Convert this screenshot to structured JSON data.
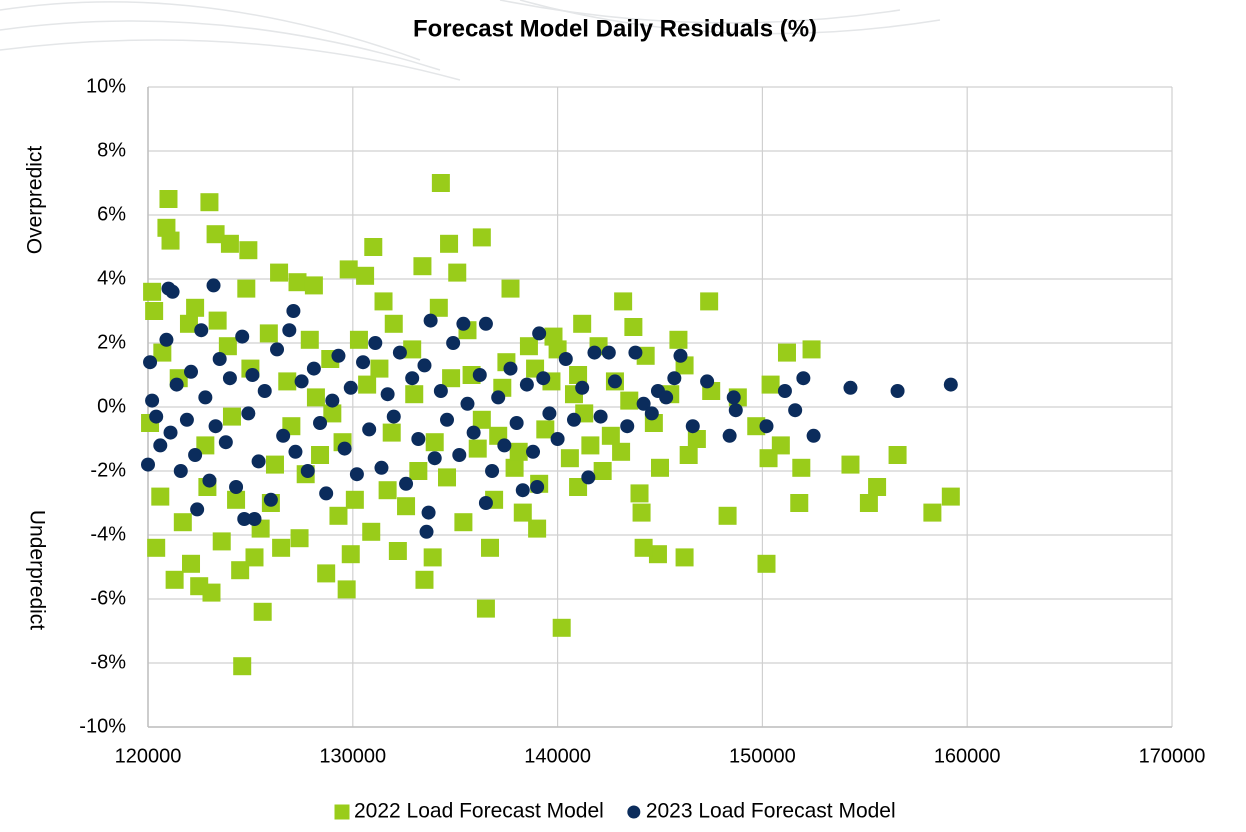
{
  "chart_data": {
    "type": "scatter",
    "title": "Forecast Model Daily Residuals (%)",
    "y_labels": [
      "Overpredict",
      "Underpredict"
    ],
    "xlim": [
      120000,
      170000
    ],
    "xticks": [
      120000,
      130000,
      140000,
      150000,
      160000,
      170000
    ],
    "ylim": [
      -10,
      10
    ],
    "yticks": [
      {
        "value": -10,
        "label": "-10%"
      },
      {
        "value": -8,
        "label": "-8%"
      },
      {
        "value": -6,
        "label": "-6%"
      },
      {
        "value": -4,
        "label": "-4%"
      },
      {
        "value": -2,
        "label": "-2%"
      },
      {
        "value": 0,
        "label": "0%"
      },
      {
        "value": 2,
        "label": "2%"
      },
      {
        "value": 4,
        "label": "4%"
      },
      {
        "value": 6,
        "label": "6%"
      },
      {
        "value": 8,
        "label": "8%"
      },
      {
        "value": 10,
        "label": "10%"
      }
    ],
    "grid": true,
    "legend": "bottom",
    "series": [
      {
        "name": "2022 Load Forecast Model",
        "color": "#99cc1a",
        "marker": "square",
        "x": [
          121000,
          123000,
          134300,
          124600,
          125600,
          136500,
          140200,
          150200,
          146200,
          144900,
          144200,
          148300,
          144100,
          158300,
          159200,
          155200,
          155600,
          154300,
          156600,
          151800,
          151900,
          150300,
          150900,
          152400,
          151200,
          150400,
          147400,
          143200,
          137700,
          136300,
          134700,
          131000,
          129800,
          130600,
          126400,
          123300,
          120900,
          121100,
          124000,
          124900,
          120200,
          120300,
          120400,
          121300,
          122500,
          123100,
          125200,
          127400,
          128700,
          129700,
          132200,
          133500,
          136700,
          139000,
          141000,
          142200,
          145000,
          146400,
          148800,
          146200,
          145900,
          143700,
          141200,
          139800,
          138600,
          120100,
          120600,
          121700,
          122000,
          122300,
          122800,
          123600,
          123900,
          124300,
          124800,
          125500,
          125900,
          126500,
          126800,
          127300,
          127700,
          128100,
          128400,
          128900,
          129300,
          129900,
          130300,
          130900,
          131300,
          131700,
          132000,
          132600,
          133000,
          133400,
          133900,
          134200,
          134600,
          135100,
          135400,
          135800,
          136100,
          136900,
          137300,
          137900,
          138300,
          138900,
          139400,
          140000,
          140600,
          141000,
          141600,
          142000,
          142600,
          143100,
          143500,
          144300,
          144700,
          145500,
          146800,
          147500,
          149700,
          121500,
          122900,
          124100,
          125000,
          126200,
          127000,
          128200,
          129500,
          130700,
          131900,
          133200,
          134800,
          136300,
          137500,
          139100,
          140800,
          142800,
          144000,
          120700,
          122100,
          123400,
          124500,
          126000,
          127900,
          129000,
          130100,
          131500,
          132900,
          134000,
          135600,
          137100,
          138100,
          139700,
          141300
        ],
        "values": [
          6.5,
          6.4,
          7.0,
          -8.1,
          -6.4,
          -6.3,
          -6.9,
          -4.9,
          -4.7,
          -4.6,
          -4.4,
          -3.4,
          -3.3,
          -3.3,
          -2.8,
          -3.0,
          -2.5,
          -1.8,
          -1.5,
          -3.0,
          -1.9,
          -1.6,
          -1.2,
          1.8,
          1.7,
          0.7,
          3.3,
          3.3,
          3.7,
          5.3,
          5.1,
          5.0,
          4.3,
          4.1,
          4.2,
          5.4,
          5.6,
          5.2,
          5.1,
          4.9,
          3.6,
          3.0,
          -4.4,
          -5.4,
          -5.6,
          -5.8,
          -4.7,
          -4.1,
          -5.2,
          -5.7,
          -4.5,
          -5.4,
          -4.4,
          -3.8,
          -2.5,
          -2.0,
          -1.9,
          -1.5,
          0.3,
          1.3,
          2.1,
          2.5,
          2.6,
          2.2,
          1.9,
          -0.5,
          -2.8,
          -3.6,
          2.6,
          3.1,
          -1.2,
          -4.2,
          1.9,
          -2.9,
          3.7,
          -3.8,
          2.3,
          -4.4,
          0.8,
          3.9,
          -2.1,
          3.8,
          -1.5,
          1.5,
          -3.4,
          -4.6,
          2.1,
          -3.9,
          1.2,
          -2.6,
          2.6,
          -3.1,
          0.4,
          4.4,
          -4.7,
          3.1,
          -2.2,
          4.2,
          -3.6,
          1.0,
          -1.3,
          -2.9,
          0.6,
          -1.9,
          -3.3,
          1.2,
          -0.7,
          1.8,
          -1.6,
          1.0,
          -1.2,
          1.9,
          -0.9,
          -1.4,
          0.2,
          1.6,
          -0.5,
          0.4,
          -1.0,
          0.5,
          -0.6,
          0.9,
          -2.5,
          -0.3,
          1.2,
          -1.8,
          -0.6,
          0.3,
          -1.1,
          0.7,
          -0.8,
          -2.0,
          0.9,
          -0.4,
          1.4,
          -2.4,
          0.4,
          0.8,
          -2.7,
          1.7,
          -4.9,
          2.7,
          -5.1,
          -3.0,
          2.1,
          -0.2,
          -2.9,
          3.3,
          1.8,
          -1.1,
          2.4,
          -0.9,
          -1.4,
          0.8,
          -0.2
        ]
      },
      {
        "name": "2023 Load Forecast Model",
        "color": "#0b2c5c",
        "marker": "circle",
        "x": [
          159200,
          156600,
          154300,
          152500,
          151600,
          151100,
          152000,
          150200,
          148400,
          148700,
          148600,
          147300,
          146600,
          146000,
          145700,
          144900,
          141500,
          139000,
          138300,
          136500,
          133600,
          133700,
          125200,
          124700,
          121200,
          121000,
          123200,
          127100,
          133800,
          135400,
          136500,
          139100,
          142500,
          120000,
          122400,
          120100,
          120200,
          120400,
          120600,
          120900,
          121100,
          121400,
          121600,
          121900,
          122100,
          122300,
          122600,
          122800,
          123000,
          123300,
          123500,
          123800,
          124000,
          124300,
          124600,
          124900,
          125100,
          125400,
          125700,
          126000,
          126300,
          126600,
          126900,
          127200,
          127500,
          127800,
          128100,
          128400,
          128700,
          129000,
          129300,
          129600,
          129900,
          130200,
          130500,
          130800,
          131100,
          131400,
          131700,
          132000,
          132300,
          132600,
          132900,
          133200,
          133500,
          134000,
          134300,
          134600,
          134900,
          135200,
          135600,
          135900,
          136200,
          136800,
          137100,
          137400,
          137700,
          138000,
          138500,
          138800,
          139300,
          139600,
          140000,
          140400,
          140800,
          141200,
          141800,
          142100,
          142800,
          143400,
          143800,
          144200,
          144600,
          145300
        ],
        "values": [
          0.7,
          0.5,
          0.6,
          -0.9,
          -0.1,
          0.5,
          0.9,
          -0.6,
          -0.9,
          -0.1,
          0.3,
          0.8,
          -0.6,
          1.6,
          0.9,
          0.5,
          -2.2,
          -2.5,
          -2.6,
          -3.0,
          -3.9,
          -3.3,
          -3.5,
          -3.5,
          3.6,
          3.7,
          3.8,
          3.0,
          2.7,
          2.6,
          2.6,
          2.3,
          1.7,
          -1.8,
          -3.2,
          1.4,
          0.2,
          -0.3,
          -1.2,
          2.1,
          -0.8,
          0.7,
          -2.0,
          -0.4,
          1.1,
          -1.5,
          2.4,
          0.3,
          -2.3,
          -0.6,
          1.5,
          -1.1,
          0.9,
          -2.5,
          2.2,
          -0.2,
          1.0,
          -1.7,
          0.5,
          -2.9,
          1.8,
          -0.9,
          2.4,
          -1.4,
          0.8,
          -2.0,
          1.2,
          -0.5,
          -2.7,
          0.2,
          1.6,
          -1.3,
          0.6,
          -2.1,
          1.4,
          -0.7,
          2.0,
          -1.9,
          0.4,
          -0.3,
          1.7,
          -2.4,
          0.9,
          -1.0,
          1.3,
          -1.6,
          0.5,
          -0.4,
          2.0,
          -1.5,
          0.1,
          -0.8,
          1.0,
          -2.0,
          0.3,
          -1.2,
          1.2,
          -0.5,
          0.7,
          -1.4,
          0.9,
          -0.2,
          -1.0,
          1.5,
          -0.4,
          0.6,
          1.7,
          -0.3,
          0.8,
          -0.6,
          1.7,
          0.1,
          -0.2,
          0.3
        ]
      }
    ]
  }
}
